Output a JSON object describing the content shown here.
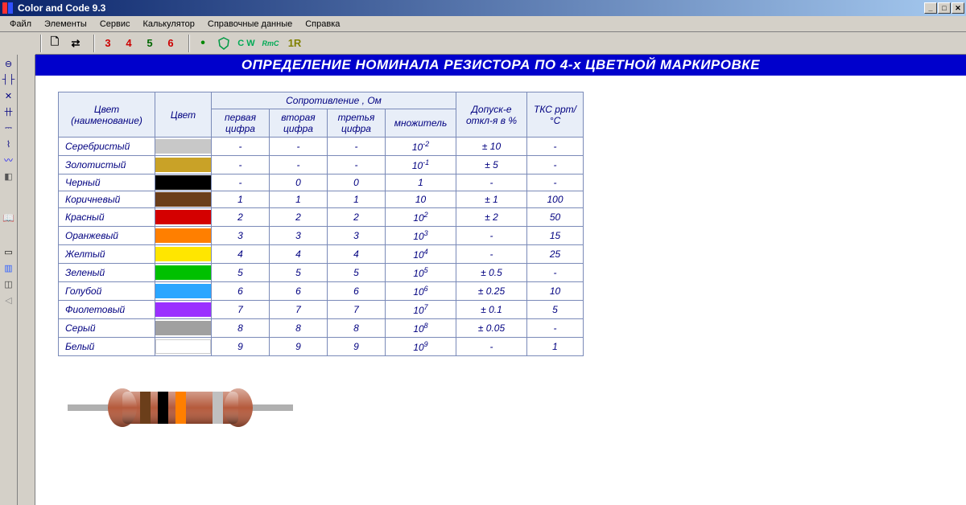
{
  "window": {
    "title": "Color and Code 9.3",
    "icon_colors": [
      "#ff0000",
      "#0000ff"
    ]
  },
  "menu": {
    "items": [
      "Файл",
      "Элементы",
      "Сервис",
      "Калькулятор",
      "Справочные данные",
      "Справка"
    ]
  },
  "toolbar": {
    "new_glyph": "🗋",
    "swap_glyph": "⇄",
    "digits": [
      {
        "t": "3",
        "c": "#cc0000"
      },
      {
        "t": "4",
        "c": "#cc0000"
      },
      {
        "t": "5",
        "c": "#006600"
      },
      {
        "t": "6",
        "c": "#cc0000"
      }
    ],
    "bullet": "•",
    "bullet_color": "#008800",
    "shield_color": "#009944",
    "cw": "C W",
    "cw_color": "#00aa55",
    "rmc": "RmC",
    "rmc_color": "#00aa55",
    "ir": "1R",
    "ir_color": "#808000"
  },
  "sidebar": {
    "items": [
      {
        "g": "⊖",
        "c": "#000080"
      },
      {
        "g": "┤├",
        "c": "#000080"
      },
      {
        "g": "✕",
        "c": "#000080"
      },
      {
        "g": "卄",
        "c": "#000080"
      },
      {
        "g": "⎓",
        "c": "#000080"
      },
      {
        "g": "⌇",
        "c": "#000080"
      },
      {
        "g": "〰",
        "c": "#0000ff"
      },
      {
        "g": "◧",
        "c": "#555555"
      }
    ],
    "items2": [
      {
        "g": "▭",
        "c": "#000"
      },
      {
        "g": "▥",
        "c": "#3060ff"
      },
      {
        "g": "◫",
        "c": "#444"
      },
      {
        "g": "◁",
        "c": "#888"
      }
    ]
  },
  "banner": "ОПРЕДЕЛЕНИЕ НОМИНАЛА РЕЗИСТОРА ПО 4-х ЦВЕТНОЙ МАРКИРОВКЕ",
  "table": {
    "head": {
      "name": "Цвет (наименование)",
      "swatch": "Цвет",
      "res_group": "Сопротивление , Ом",
      "d1": "первая цифра",
      "d2": "вторая цифра",
      "d3": "третья цифра",
      "mult": "множитель",
      "tol": "Допуск-е откл-я в %",
      "tks": "ТКС  ppm/°C"
    },
    "rows": [
      {
        "name": "Серебристый",
        "color": "#c8c8c8",
        "d1": "-",
        "d2": "-",
        "d3": "-",
        "mult_base": "10",
        "mult_exp": "-2",
        "tol": "± 10",
        "tks": "-"
      },
      {
        "name": "Золотистый",
        "color": "#c9a227",
        "d1": "-",
        "d2": "-",
        "d3": "-",
        "mult_base": "10",
        "mult_exp": "-1",
        "tol": "± 5",
        "tks": "-"
      },
      {
        "name": "Черный",
        "color": "#000000",
        "d1": "-",
        "d2": "0",
        "d3": "0",
        "mult_base": "1",
        "mult_exp": "",
        "tol": "-",
        "tks": "-"
      },
      {
        "name": "Коричневый",
        "color": "#6b3e1a",
        "d1": "1",
        "d2": "1",
        "d3": "1",
        "mult_base": "10",
        "mult_exp": "",
        "tol": "± 1",
        "tks": "100"
      },
      {
        "name": "Красный",
        "color": "#d40000",
        "d1": "2",
        "d2": "2",
        "d3": "2",
        "mult_base": "10",
        "mult_exp": "2",
        "tol": "± 2",
        "tks": "50"
      },
      {
        "name": "Оранжевый",
        "color": "#ff7f00",
        "d1": "3",
        "d2": "3",
        "d3": "3",
        "mult_base": "10",
        "mult_exp": "3",
        "tol": "-",
        "tks": "15"
      },
      {
        "name": "Желтый",
        "color": "#ffe600",
        "d1": "4",
        "d2": "4",
        "d3": "4",
        "mult_base": "10",
        "mult_exp": "4",
        "tol": "-",
        "tks": "25"
      },
      {
        "name": "Зеленый",
        "color": "#00c000",
        "d1": "5",
        "d2": "5",
        "d3": "5",
        "mult_base": "10",
        "mult_exp": "5",
        "tol": "± 0.5",
        "tks": "-"
      },
      {
        "name": "Голубой",
        "color": "#2aa6ff",
        "d1": "6",
        "d2": "6",
        "d3": "6",
        "mult_base": "10",
        "mult_exp": "6",
        "tol": "± 0.25",
        "tks": "10"
      },
      {
        "name": "Фиолетовый",
        "color": "#9b30ff",
        "d1": "7",
        "d2": "7",
        "d3": "7",
        "mult_base": "10",
        "mult_exp": "7",
        "tol": "± 0.1",
        "tks": "5"
      },
      {
        "name": "Серый",
        "color": "#a0a0a0",
        "d1": "8",
        "d2": "8",
        "d3": "8",
        "mult_base": "10",
        "mult_exp": "8",
        "tol": "± 0.05",
        "tks": "-"
      },
      {
        "name": "Белый",
        "color": "#ffffff",
        "d1": "9",
        "d2": "9",
        "d3": "9",
        "mult_base": "10",
        "mult_exp": "9",
        "tol": "-",
        "tks": "1"
      }
    ]
  },
  "resistor": {
    "body_color": "#b55a3c",
    "body_shadow": "#7a3a24",
    "lead_color": "#b0b0b0",
    "bands": [
      "#6b3e1a",
      "#000000",
      "#ff7f00",
      "#c0c0c0"
    ]
  }
}
